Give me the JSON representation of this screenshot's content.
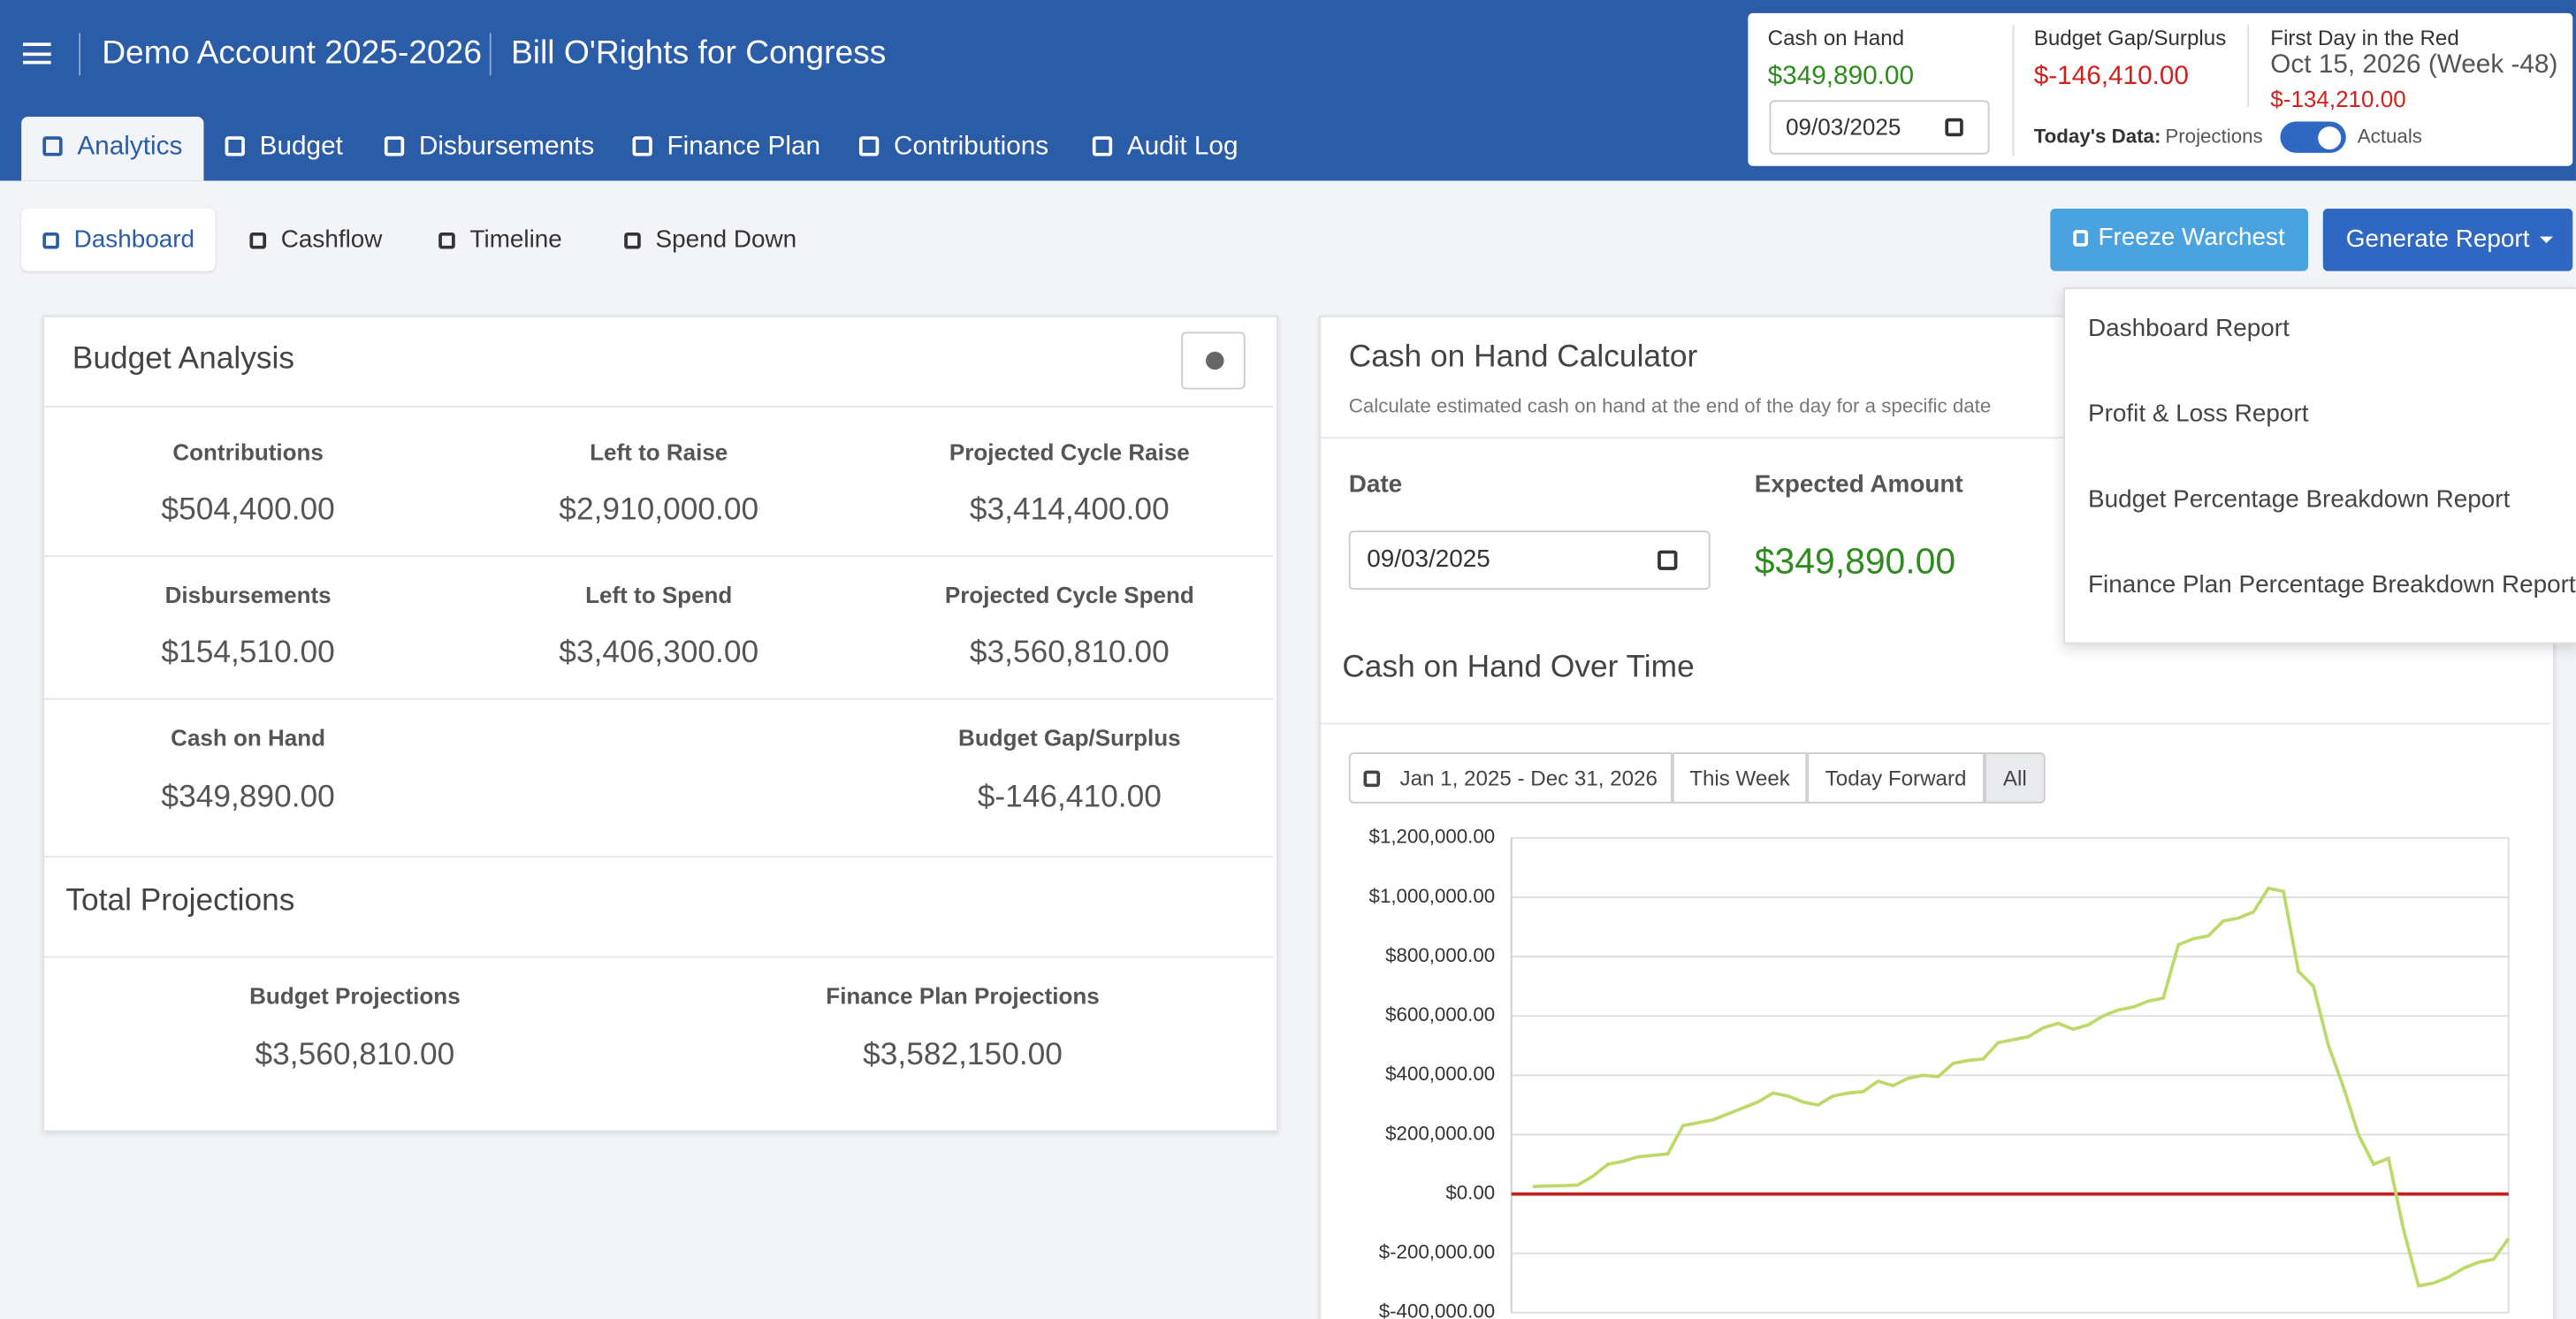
{
  "header": {
    "account": "Demo Account 2025-2026",
    "campaign": "Bill O'Rights for Congress"
  },
  "nav_tabs": [
    "Analytics",
    "Budget",
    "Disbursements",
    "Finance Plan",
    "Contributions",
    "Audit Log"
  ],
  "summary": {
    "cash_on_hand": {
      "label": "Cash on Hand",
      "value": "$349,890.00",
      "date": "09/03/2025"
    },
    "budget_gap": {
      "label": "Budget Gap/Surplus",
      "value": "$-146,410.00"
    },
    "first_red": {
      "label": "First Day in the Red",
      "date": "Oct 15, 2026 (Week -48)",
      "amount": "$-134,210.00"
    },
    "todays_data": {
      "label": "Today's Data:",
      "left": "Projections",
      "right": "Actuals"
    }
  },
  "sub_tabs": [
    "Dashboard",
    "Cashflow",
    "Timeline",
    "Spend Down"
  ],
  "buttons": {
    "freeze": "Freeze Warchest",
    "generate": "Generate Report"
  },
  "report_menu": [
    "Dashboard Report",
    "Profit & Loss Report",
    "Budget Percentage Breakdown Report",
    "Finance Plan Percentage Breakdown Report"
  ],
  "budget_analysis": {
    "title": "Budget Analysis",
    "rows": [
      [
        {
          "label": "Contributions",
          "value": "$504,400.00"
        },
        {
          "label": "Left to Raise",
          "value": "$2,910,000.00"
        },
        {
          "label": "Projected Cycle Raise",
          "value": "$3,414,400.00"
        }
      ],
      [
        {
          "label": "Disbursements",
          "value": "$154,510.00"
        },
        {
          "label": "Left to Spend",
          "value": "$3,406,300.00"
        },
        {
          "label": "Projected Cycle Spend",
          "value": "$3,560,810.00"
        }
      ],
      [
        {
          "label": "Cash on Hand",
          "value": "$349,890.00"
        },
        {
          "label": "Budget Gap/Surplus",
          "value": "$-146,410.00"
        }
      ]
    ],
    "total_title": "Total Projections",
    "totals": [
      {
        "label": "Budget Projections",
        "value": "$3,560,810.00"
      },
      {
        "label": "Finance Plan Projections",
        "value": "$3,582,150.00"
      }
    ]
  },
  "calculator": {
    "title": "Cash on Hand Calculator",
    "subtitle": "Calculate estimated cash on hand at the end of the day for a specific date",
    "date_label": "Date",
    "date_value": "09/03/2025",
    "expected_label": "Expected Amount",
    "expected_value": "$349,890.00"
  },
  "range_buttons": [
    "Jan 1, 2025 - Dec 31, 2026",
    "This Week",
    "Today Forward",
    "All"
  ],
  "chart_data": {
    "type": "line",
    "title": "Cash on Hand Over Time",
    "color": "#bcd96a",
    "values": [
      25000,
      27000,
      28000,
      30000,
      60000,
      100000,
      110000,
      125000,
      130000,
      135000,
      230000,
      240000,
      250000,
      270000,
      290000,
      310000,
      340000,
      330000,
      310000,
      300000,
      330000,
      340000,
      345000,
      380000,
      365000,
      390000,
      400000,
      395000,
      440000,
      450000,
      455000,
      510000,
      520000,
      530000,
      560000,
      575000,
      555000,
      570000,
      600000,
      620000,
      630000,
      650000,
      660000,
      840000,
      860000,
      870000,
      920000,
      930000,
      950000,
      1030000,
      1020000,
      750000,
      700000,
      500000,
      360000,
      200000,
      100000,
      120000,
      -120000,
      -310000,
      -300000,
      -280000,
      -250000,
      -230000,
      -220000,
      -150000
    ],
    "ylim": [
      -400000,
      1200000
    ],
    "yticks": [
      {
        "value": -400000,
        "label": "$-400,000.00"
      },
      {
        "value": -200000,
        "label": "$-200,000.00"
      },
      {
        "value": 0,
        "label": "$0.00"
      },
      {
        "value": 200000,
        "label": "$200,000.00"
      },
      {
        "value": 400000,
        "label": "$400,000.00"
      },
      {
        "value": 600000,
        "label": "$600,000.00"
      },
      {
        "value": 800000,
        "label": "$800,000.00"
      },
      {
        "value": 1000000,
        "label": "$1,000,000.00"
      },
      {
        "value": 1200000,
        "label": "$1,200,000.00"
      }
    ],
    "grid": true,
    "reference_line": {
      "value": 0,
      "color": "#c0201c"
    }
  }
}
